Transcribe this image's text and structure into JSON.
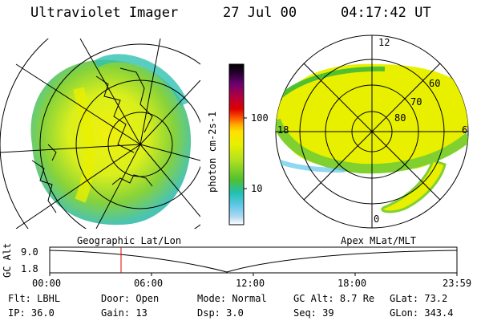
{
  "header": {
    "instrument": "Ultraviolet Imager",
    "date": "27 Jul 00",
    "time": "04:17:42 UT"
  },
  "colorbar": {
    "unit_label": "photon cm-2s-1",
    "ticks": [
      "100",
      "10"
    ],
    "colors": [
      "#000000",
      "#2a0033",
      "#6a0070",
      "#b00040",
      "#e00000",
      "#ff6000",
      "#ffb000",
      "#ffe000",
      "#e8f000",
      "#b0e020",
      "#50c030",
      "#20c0b0",
      "#60c8e8",
      "#b0d8f0",
      "#ffffff"
    ]
  },
  "left_panel": {
    "caption": "Geographic Lat/Lon"
  },
  "right_panel": {
    "caption": "Apex MLat/MLT",
    "mlt_labels": {
      "top": "12",
      "left": "18",
      "right": "6",
      "bottom": "0"
    },
    "lat_labels": [
      "60",
      "70",
      "80"
    ]
  },
  "altitude_plot": {
    "ylabel": "GC Alt",
    "y_ticks": [
      "9.0",
      "1.8"
    ],
    "x_ticks": [
      "00:00",
      "06:00",
      "12:00",
      "18:00",
      "23:59"
    ],
    "marker_time": "04:17:42"
  },
  "info": {
    "row1": [
      {
        "label": "Flt:",
        "value": "LBHL"
      },
      {
        "label": "Door:",
        "value": "Open"
      },
      {
        "label": "Mode:",
        "value": "Normal"
      },
      {
        "label": "GC Alt:",
        "value": "8.7 Re"
      },
      {
        "label": "GLat:",
        "value": "73.2"
      }
    ],
    "row2": [
      {
        "label": "IP:",
        "value": "36.0"
      },
      {
        "label": "Gain:",
        "value": "13"
      },
      {
        "label": "Dsp:",
        "value": "3.0"
      },
      {
        "label": "Seq:",
        "value": "39"
      },
      {
        "label": "GLon:",
        "value": "343.4"
      }
    ]
  }
}
